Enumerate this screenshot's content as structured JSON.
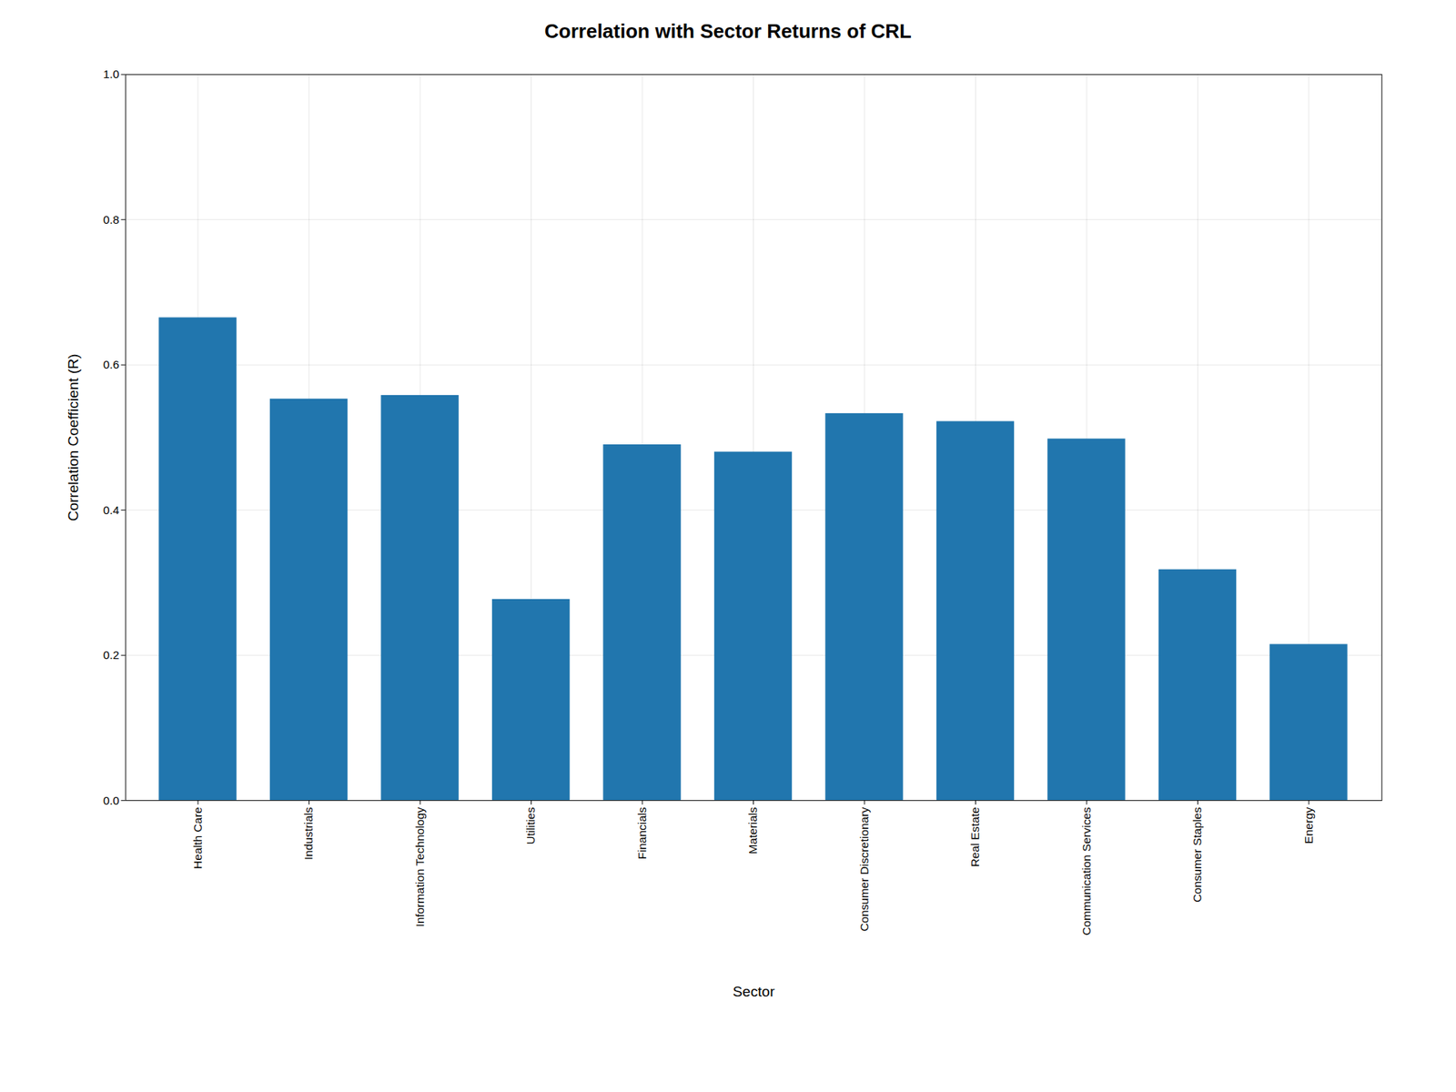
{
  "chart_data": {
    "type": "bar",
    "title": "Correlation with Sector Returns of CRL",
    "xlabel": "Sector",
    "ylabel": "Correlation Coefficient (R)",
    "categories": [
      "Health Care",
      "Industrials",
      "Information Technology",
      "Utilities",
      "Financials",
      "Materials",
      "Consumer Discretionary",
      "Real Estate",
      "Communication Services",
      "Consumer Staples",
      "Energy"
    ],
    "values": [
      0.665,
      0.553,
      0.558,
      0.277,
      0.49,
      0.48,
      0.533,
      0.522,
      0.498,
      0.318,
      0.215
    ],
    "color": "#2176ae",
    "ylim": [
      0.0,
      1.0
    ],
    "yticks": [
      {
        "value": 0,
        "label": "0.0"
      },
      0.2,
      0.4,
      0.6,
      0.8,
      {
        "value": 1,
        "label": "1.0"
      }
    ],
    "grid": true
  }
}
